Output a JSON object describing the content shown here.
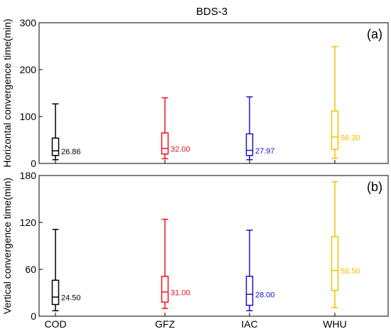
{
  "title": "BDS-3",
  "chart_data": [
    {
      "type": "box",
      "panel_label": "(a)",
      "ylabel": "Horizontal convergence time(min)",
      "ylim": [
        0,
        300
      ],
      "yticks": [
        0,
        100,
        200,
        300
      ],
      "categories": [
        "COD",
        "GFZ",
        "IAC",
        "WHU"
      ],
      "show_category_labels": false,
      "colors": [
        "#000000",
        "#e8141b",
        "#1a14c8",
        "#f5c000"
      ],
      "boxes": [
        {
          "name": "COD",
          "min": 8,
          "q1": 17,
          "median": 26.86,
          "q3": 54,
          "max": 127,
          "median_label": "26.86"
        },
        {
          "name": "GFZ",
          "min": 10,
          "q1": 20,
          "median": 32.0,
          "q3": 65,
          "max": 140,
          "median_label": "32.00"
        },
        {
          "name": "IAC",
          "min": 8,
          "q1": 17,
          "median": 27.97,
          "q3": 63,
          "max": 142,
          "median_label": "27.97"
        },
        {
          "name": "WHU",
          "min": 11,
          "q1": 30,
          "median": 56.3,
          "q3": 112,
          "max": 249,
          "median_label": "56.30"
        }
      ]
    },
    {
      "type": "box",
      "panel_label": "(b)",
      "ylabel": "Vertical  convergence time(min)",
      "ylim": [
        0,
        180
      ],
      "yticks": [
        0,
        60,
        120,
        180
      ],
      "categories": [
        "COD",
        "GFZ",
        "IAC",
        "WHU"
      ],
      "show_category_labels": true,
      "colors": [
        "#000000",
        "#e8141b",
        "#1a14c8",
        "#f5c000"
      ],
      "boxes": [
        {
          "name": "COD",
          "min": 7,
          "q1": 15,
          "median": 24.5,
          "q3": 46,
          "max": 111,
          "median_label": "24.50"
        },
        {
          "name": "GFZ",
          "min": 10,
          "q1": 18,
          "median": 31.0,
          "q3": 51,
          "max": 124,
          "median_label": "31.00"
        },
        {
          "name": "IAC",
          "min": 7,
          "q1": 14,
          "median": 28.0,
          "q3": 51,
          "max": 110,
          "median_label": "28.00"
        },
        {
          "name": "WHU",
          "min": 11,
          "q1": 33,
          "median": 58.5,
          "q3": 102,
          "max": 172,
          "median_label": "58.50"
        }
      ]
    }
  ]
}
